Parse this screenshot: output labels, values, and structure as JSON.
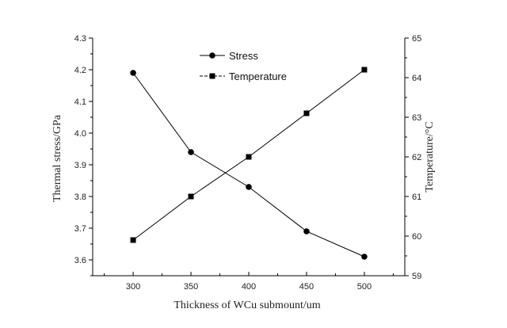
{
  "chart_data": {
    "type": "line",
    "x": [
      300,
      350,
      400,
      450,
      500
    ],
    "xlabel": "Thickness of WCu submount/um",
    "x_ticks": [
      "300",
      "350",
      "400",
      "450",
      "500"
    ],
    "xlim": [
      265,
      535
    ],
    "series": [
      {
        "name": "Stress",
        "axis": "left",
        "marker": "circle",
        "values": [
          4.19,
          3.94,
          3.83,
          3.69,
          3.61
        ]
      },
      {
        "name": "Temperature",
        "axis": "right",
        "marker": "square",
        "values": [
          59.9,
          61.0,
          62.0,
          63.1,
          64.2
        ]
      }
    ],
    "ylabel_left": "Thermal stress/GPa",
    "ylim_left": [
      3.55,
      4.3
    ],
    "y_ticks_left": [
      "3.6",
      "3.7",
      "3.8",
      "3.9",
      "4.0",
      "4.1",
      "4.2",
      "4.3"
    ],
    "ylabel_right": "Temperature/°C",
    "ylim_right": [
      59,
      65
    ],
    "y_ticks_right": [
      "59",
      "60",
      "61",
      "62",
      "63",
      "64",
      "65"
    ],
    "grid": false,
    "legend_position": "top-center",
    "colors": {
      "line": "#000000",
      "marker": "#000000",
      "axis": "#000000"
    }
  }
}
